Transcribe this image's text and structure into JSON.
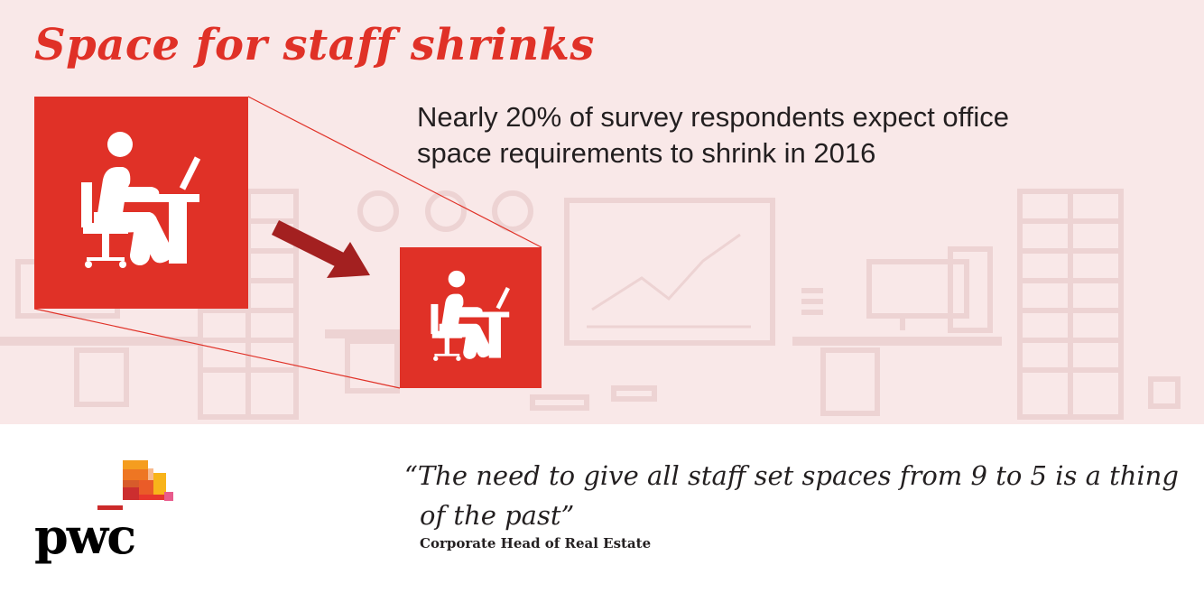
{
  "title": "Space for staff shrinks",
  "stat": {
    "line1": "Nearly 20% of survey respondents expect office",
    "line2": "space requirements to shrink in 2016"
  },
  "quote": {
    "line1": "“The need to give all staff set spaces from 9 to 5 is a thing",
    "line2": "of the past”",
    "attribution": "Corporate Head of Real Estate"
  },
  "logo": {
    "text": "pwc"
  },
  "colors": {
    "accent": "#e03127",
    "arrow": "#a32020",
    "background_band": "#f9e8e8",
    "furniture": "#eccfcf"
  },
  "icons": [
    "person-at-desk-icon-large",
    "person-at-desk-icon-small",
    "shrink-arrow-icon"
  ]
}
